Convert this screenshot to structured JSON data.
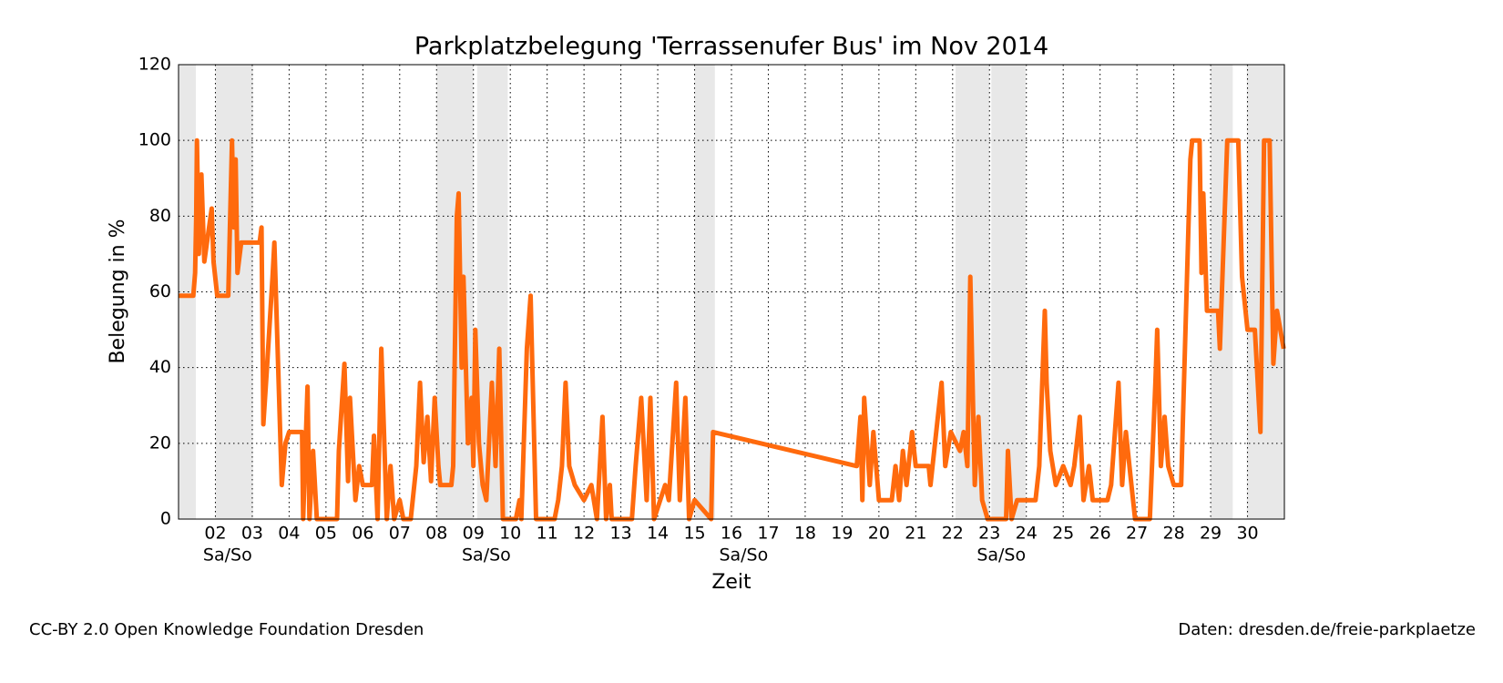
{
  "chart_data": {
    "type": "line",
    "title": "Parkplatzbelegung 'Terrassenufer Bus' im Nov 2014",
    "xlabel": "Zeit",
    "ylabel": "Belegung in %",
    "xlim": [
      1,
      31
    ],
    "ylim": [
      0,
      120
    ],
    "xticks": [
      {
        "value": 2,
        "label": "02"
      },
      {
        "value": 3,
        "label": "03"
      },
      {
        "value": 4,
        "label": "04"
      },
      {
        "value": 5,
        "label": "05"
      },
      {
        "value": 6,
        "label": "06"
      },
      {
        "value": 7,
        "label": "07"
      },
      {
        "value": 8,
        "label": "08"
      },
      {
        "value": 9,
        "label": "09"
      },
      {
        "value": 10,
        "label": "10"
      },
      {
        "value": 11,
        "label": "11"
      },
      {
        "value": 12,
        "label": "12"
      },
      {
        "value": 13,
        "label": "13"
      },
      {
        "value": 14,
        "label": "14"
      },
      {
        "value": 15,
        "label": "15"
      },
      {
        "value": 16,
        "label": "16"
      },
      {
        "value": 17,
        "label": "17"
      },
      {
        "value": 18,
        "label": "18"
      },
      {
        "value": 19,
        "label": "19"
      },
      {
        "value": 20,
        "label": "20"
      },
      {
        "value": 21,
        "label": "21"
      },
      {
        "value": 22,
        "label": "22"
      },
      {
        "value": 23,
        "label": "23"
      },
      {
        "value": 24,
        "label": "24"
      },
      {
        "value": 25,
        "label": "25"
      },
      {
        "value": 26,
        "label": "26"
      },
      {
        "value": 27,
        "label": "27"
      },
      {
        "value": 28,
        "label": "28"
      },
      {
        "value": 29,
        "label": "29"
      },
      {
        "value": 30,
        "label": "30"
      }
    ],
    "yticks": [
      0,
      20,
      40,
      60,
      80,
      100,
      120
    ],
    "grid": true,
    "weekend_color": "#e8e8e8",
    "weekend_spans": [
      [
        1.0,
        1.47
      ],
      [
        2.0,
        3.02
      ],
      [
        8.0,
        9.0
      ],
      [
        9.1,
        9.93
      ],
      [
        15.0,
        15.55
      ],
      [
        22.08,
        23.0
      ],
      [
        23.05,
        23.98
      ],
      [
        29.0,
        29.6
      ],
      [
        29.98,
        31.0
      ]
    ],
    "weekend_labels": [
      {
        "x": 2.33,
        "text": "Sa/So"
      },
      {
        "x": 9.35,
        "text": "Sa/So"
      },
      {
        "x": 16.33,
        "text": "Sa/So"
      },
      {
        "x": 23.32,
        "text": "Sa/So"
      }
    ],
    "series": [
      {
        "name": "Terrassenufer Bus",
        "color": "#ff6a0d",
        "x": [
          1.0,
          1.4,
          1.45,
          1.48,
          1.5,
          1.55,
          1.62,
          1.7,
          1.9,
          1.95,
          2.05,
          2.35,
          2.45,
          2.5,
          2.55,
          2.6,
          2.7,
          3.2,
          3.25,
          3.3,
          3.4,
          3.55,
          3.6,
          3.75,
          3.8,
          3.9,
          4.0,
          4.35,
          4.38,
          4.5,
          4.55,
          4.65,
          4.75,
          5.3,
          5.35,
          5.5,
          5.6,
          5.65,
          5.8,
          5.9,
          6.0,
          6.25,
          6.3,
          6.4,
          6.5,
          6.65,
          6.75,
          6.85,
          7.0,
          7.1,
          7.3,
          7.45,
          7.55,
          7.65,
          7.75,
          7.85,
          7.95,
          8.05,
          8.1,
          8.4,
          8.45,
          8.55,
          8.6,
          8.68,
          8.73,
          8.85,
          8.95,
          9.0,
          9.05,
          9.15,
          9.25,
          9.35,
          9.5,
          9.6,
          9.7,
          9.8,
          10.15,
          10.25,
          10.3,
          10.45,
          10.55,
          10.7,
          11.2,
          11.3,
          11.4,
          11.5,
          11.6,
          11.75,
          12.0,
          12.2,
          12.35,
          12.5,
          12.6,
          12.7,
          12.75,
          13.3,
          13.4,
          13.55,
          13.7,
          13.8,
          13.9,
          14.2,
          14.3,
          14.5,
          14.6,
          14.75,
          14.85,
          15.0,
          15.45,
          15.5,
          19.4,
          19.5,
          19.55,
          19.6,
          19.75,
          19.85,
          20.0,
          20.35,
          20.45,
          20.55,
          20.65,
          20.75,
          20.9,
          21.0,
          21.35,
          21.4,
          21.6,
          21.7,
          21.8,
          21.95,
          22.2,
          22.3,
          22.4,
          22.48,
          22.6,
          22.7,
          22.8,
          22.95,
          23.45,
          23.5,
          23.6,
          23.75,
          24.25,
          24.35,
          24.5,
          24.55,
          24.65,
          24.8,
          25.0,
          25.2,
          25.3,
          25.45,
          25.55,
          25.7,
          25.8,
          26.2,
          26.3,
          26.5,
          26.6,
          26.7,
          26.85,
          26.95,
          27.35,
          27.5,
          27.55,
          27.65,
          27.75,
          27.85,
          28.0,
          28.2,
          28.25,
          28.45,
          28.5,
          28.7,
          28.75,
          28.8,
          28.9,
          29.2,
          29.25,
          29.45,
          29.75,
          29.85,
          30.0,
          30.2,
          30.35,
          30.45,
          30.6,
          30.7,
          30.8,
          30.98
        ],
        "values": [
          59,
          59,
          65,
          80,
          100,
          70,
          91,
          68,
          82,
          68,
          59,
          59,
          100,
          77,
          95,
          65,
          73,
          73,
          77,
          25,
          40,
          64,
          73,
          25,
          9,
          20,
          23,
          23,
          0,
          35,
          0,
          18,
          0,
          0,
          18,
          41,
          10,
          32,
          5,
          14,
          9,
          9,
          22,
          0,
          45,
          0,
          14,
          0,
          5,
          0,
          0,
          14,
          36,
          15,
          27,
          10,
          32,
          14,
          9,
          9,
          14,
          80,
          86,
          40,
          64,
          20,
          32,
          14,
          50,
          20,
          9,
          5,
          36,
          14,
          45,
          0,
          0,
          5,
          0,
          45,
          59,
          0,
          0,
          5,
          14,
          36,
          14,
          9,
          5,
          9,
          0,
          27,
          0,
          9,
          0,
          0,
          14,
          32,
          5,
          32,
          0,
          9,
          5,
          36,
          5,
          32,
          0,
          5,
          0,
          23,
          14,
          27,
          5,
          32,
          9,
          23,
          5,
          5,
          14,
          5,
          18,
          9,
          23,
          14,
          14,
          9,
          27,
          36,
          14,
          23,
          18,
          23,
          14,
          64,
          9,
          27,
          5,
          0,
          0,
          18,
          0,
          5,
          5,
          14,
          55,
          36,
          18,
          9,
          14,
          9,
          14,
          27,
          5,
          14,
          5,
          5,
          9,
          36,
          9,
          23,
          9,
          0,
          0,
          36,
          50,
          14,
          27,
          14,
          9,
          9,
          27,
          95,
          100,
          100,
          65,
          86,
          55,
          55,
          45,
          100,
          100,
          64,
          50,
          50,
          23,
          100,
          100,
          41,
          55,
          45
        ]
      }
    ],
    "footer_left": "CC-BY 2.0 Open Knowledge Foundation Dresden",
    "footer_right": "Daten: dresden.de/freie-parkplaetze"
  }
}
